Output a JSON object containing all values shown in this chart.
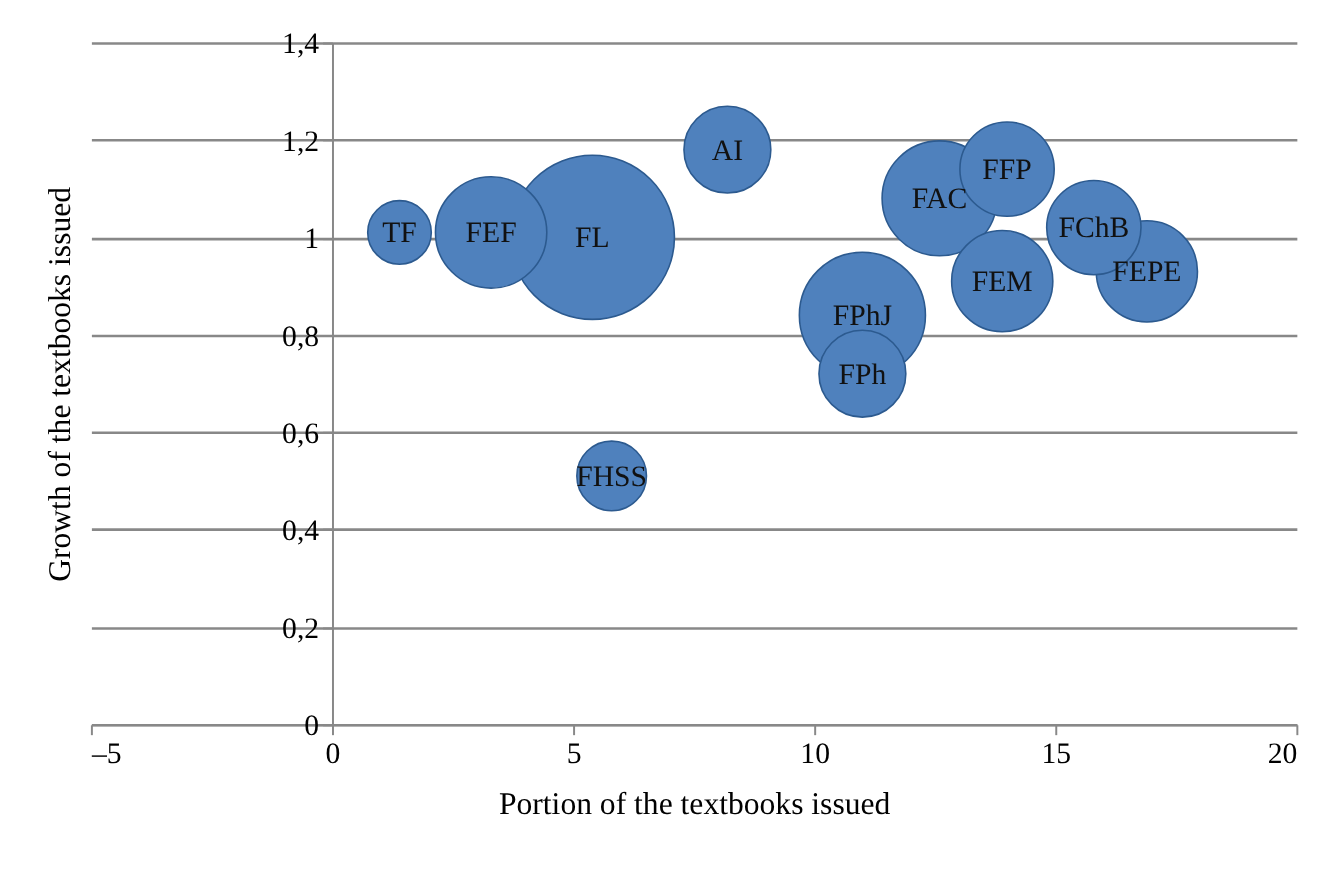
{
  "chart_data": {
    "type": "bubble",
    "xlabel": "Portion of the textbooks issued",
    "ylabel": "Growth of the textbooks issued",
    "xlim": [
      -5,
      20
    ],
    "xticks": [
      {
        "value": -5,
        "label": "–5"
      },
      0,
      5,
      10,
      15,
      20
    ],
    "ylim": [
      0,
      1.4
    ],
    "yticks": [
      0,
      {
        "value": 0.2,
        "label": "0,2"
      },
      {
        "value": 0.4,
        "label": "0,4"
      },
      {
        "value": 0.6,
        "label": "0,6"
      },
      {
        "value": 0.8,
        "label": "0,8"
      },
      1,
      {
        "value": 1.2,
        "label": "1,2"
      },
      {
        "value": 1.4,
        "label": "1,4"
      }
    ],
    "grid": "y",
    "legend": false,
    "series": [
      {
        "name": "TF",
        "color": "#4f81bd",
        "x": [
          1.4
        ],
        "values": [
          1.01
        ],
        "sizes": [
          0.15
        ]
      },
      {
        "name": "FEF",
        "color": "#4f81bd",
        "x": [
          3.3
        ],
        "values": [
          1.01
        ],
        "sizes": [
          0.46
        ]
      },
      {
        "name": "FL",
        "color": "#4f81bd",
        "x": [
          5.4
        ],
        "values": [
          1.0
        ],
        "sizes": [
          1
        ]
      },
      {
        "name": "AI",
        "color": "#4f81bd",
        "x": [
          8.2
        ],
        "values": [
          1.18
        ],
        "sizes": [
          0.28
        ]
      },
      {
        "name": "FHSS",
        "color": "#4f81bd",
        "x": [
          5.8
        ],
        "values": [
          0.51
        ],
        "sizes": [
          0.18
        ]
      },
      {
        "name": "FAC",
        "color": "#4f81bd",
        "x": [
          12.6
        ],
        "values": [
          1.08
        ],
        "sizes": [
          0.49
        ]
      },
      {
        "name": "FFP",
        "color": "#4f81bd",
        "x": [
          14.0
        ],
        "values": [
          1.14
        ],
        "sizes": [
          0.33
        ]
      },
      {
        "name": "FChB",
        "color": "#4f81bd",
        "x": [
          15.8
        ],
        "values": [
          1.02
        ],
        "sizes": [
          0.33
        ]
      },
      {
        "name": "FEPE",
        "color": "#4f81bd",
        "x": [
          16.9
        ],
        "values": [
          0.93
        ],
        "sizes": [
          0.38
        ]
      },
      {
        "name": "FEM",
        "color": "#4f81bd",
        "x": [
          13.9
        ],
        "values": [
          0.91
        ],
        "sizes": [
          0.38
        ]
      },
      {
        "name": "FPhJ",
        "color": "#4f81bd",
        "x": [
          11.0
        ],
        "values": [
          0.84
        ],
        "sizes": [
          0.59
        ]
      },
      {
        "name": "FPh",
        "color": "#4f81bd",
        "x": [
          11.0
        ],
        "values": [
          0.72
        ],
        "sizes": [
          0.28
        ]
      }
    ]
  }
}
